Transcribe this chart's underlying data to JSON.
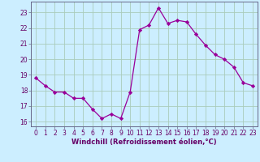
{
  "x": [
    0,
    1,
    2,
    3,
    4,
    5,
    6,
    7,
    8,
    9,
    10,
    11,
    12,
    13,
    14,
    15,
    16,
    17,
    18,
    19,
    20,
    21,
    22,
    23
  ],
  "y": [
    18.8,
    18.3,
    17.9,
    17.9,
    17.5,
    17.5,
    16.8,
    16.2,
    16.5,
    16.2,
    17.9,
    21.9,
    22.2,
    23.3,
    22.3,
    22.5,
    22.4,
    21.6,
    20.9,
    20.3,
    20.0,
    19.5,
    18.5,
    18.3
  ],
  "line_color": "#990099",
  "marker": "D",
  "marker_size": 2.2,
  "bg_color": "#cceeff",
  "grid_color": "#aaccbb",
  "xlabel": "Windchill (Refroidissement éolien,°C)",
  "xlabel_color": "#660066",
  "tick_color": "#660066",
  "spine_color": "#666688",
  "ylim": [
    15.7,
    23.7
  ],
  "xlim": [
    -0.5,
    23.5
  ],
  "yticks": [
    16,
    17,
    18,
    19,
    20,
    21,
    22,
    23
  ],
  "xticks": [
    0,
    1,
    2,
    3,
    4,
    5,
    6,
    7,
    8,
    9,
    10,
    11,
    12,
    13,
    14,
    15,
    16,
    17,
    18,
    19,
    20,
    21,
    22,
    23
  ],
  "tick_fontsize": 5.5,
  "xlabel_fontsize": 6.0
}
